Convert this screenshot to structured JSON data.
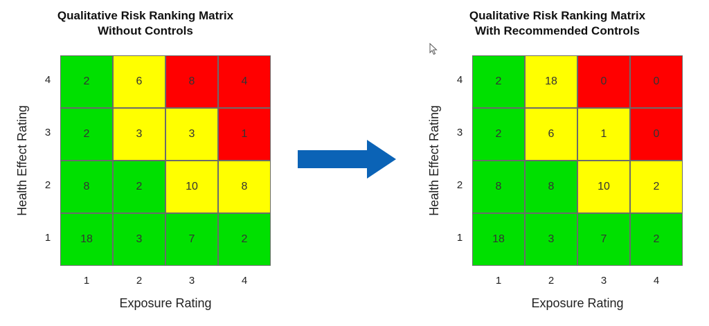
{
  "colors": {
    "green": "#00e000",
    "yellow": "#ffff00",
    "red": "#ff0000",
    "arrow": "#0b63b6"
  },
  "chart_data": [
    {
      "type": "heatmap",
      "title": "Qualitative Risk Ranking Matrix",
      "subtitle": "Without Controls",
      "xlabel": "Exposure Rating",
      "ylabel": "Health Effect Rating",
      "x_ticks": [
        "1",
        "2",
        "3",
        "4"
      ],
      "y_ticks": [
        "4",
        "3",
        "2",
        "1"
      ],
      "rows": [
        [
          2,
          6,
          8,
          4
        ],
        [
          2,
          3,
          3,
          1
        ],
        [
          8,
          2,
          10,
          8
        ],
        [
          18,
          3,
          7,
          2
        ]
      ],
      "cell_colors": [
        [
          "green",
          "yellow",
          "red",
          "red"
        ],
        [
          "green",
          "yellow",
          "yellow",
          "red"
        ],
        [
          "green",
          "green",
          "yellow",
          "yellow"
        ],
        [
          "green",
          "green",
          "green",
          "green"
        ]
      ]
    },
    {
      "type": "heatmap",
      "title": "Qualitative Risk Ranking Matrix",
      "subtitle": "With Recommended Controls",
      "xlabel": "Exposure Rating",
      "ylabel": "Health Effect Rating",
      "x_ticks": [
        "1",
        "2",
        "3",
        "4"
      ],
      "y_ticks": [
        "4",
        "3",
        "2",
        "1"
      ],
      "rows": [
        [
          2,
          18,
          0,
          0
        ],
        [
          2,
          6,
          1,
          0
        ],
        [
          8,
          8,
          10,
          2
        ],
        [
          18,
          3,
          7,
          2
        ]
      ],
      "cell_colors": [
        [
          "green",
          "yellow",
          "red",
          "red"
        ],
        [
          "green",
          "yellow",
          "yellow",
          "red"
        ],
        [
          "green",
          "green",
          "yellow",
          "yellow"
        ],
        [
          "green",
          "green",
          "green",
          "green"
        ]
      ]
    }
  ]
}
